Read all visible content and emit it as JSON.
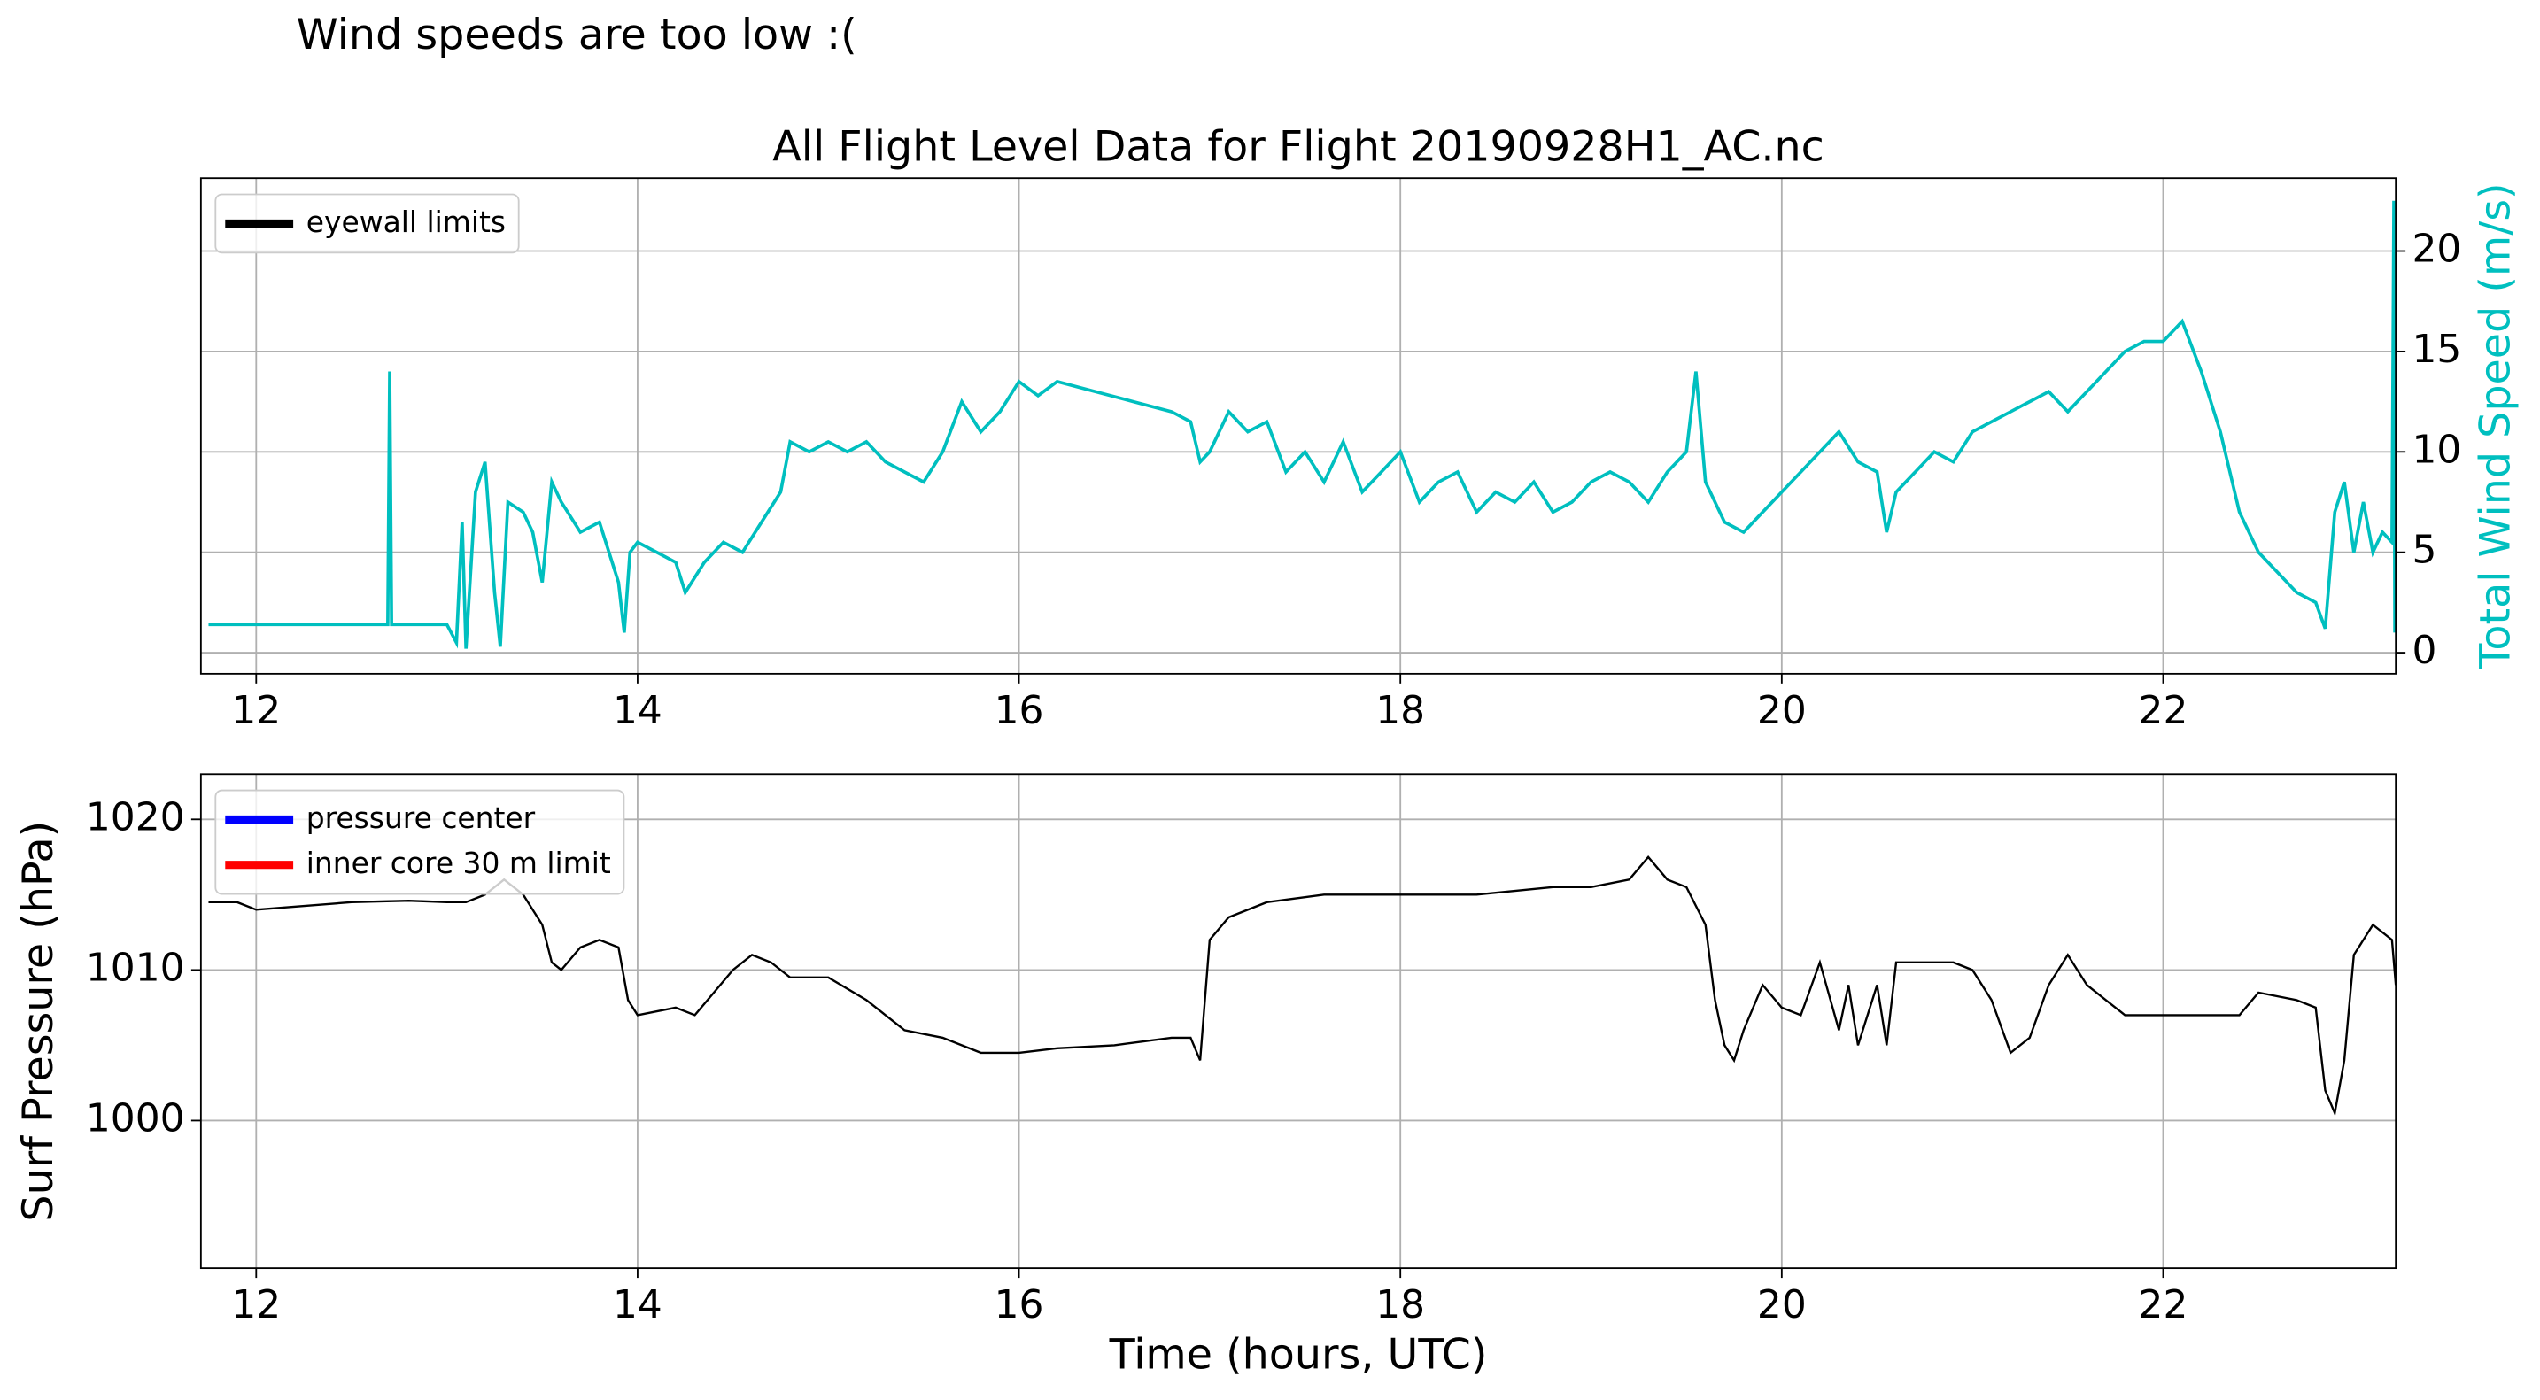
{
  "title": "Wind speeds are too low :(",
  "chart_data": [
    {
      "type": "line",
      "title": "All Flight Level Data for Flight 20190928H1_AC.nc",
      "y2_label": "Total Wind Speed (m/s)",
      "xlim": [
        11.71,
        23.22
      ],
      "xticks": [
        12,
        14,
        16,
        18,
        20,
        22
      ],
      "y2lim": [
        -1.05,
        23.63
      ],
      "y2ticks": [
        0,
        5,
        10,
        15,
        20
      ],
      "grid": true,
      "legend_location": "upper left",
      "legend_entries": [
        {
          "name": "eyewall limits",
          "color": "#000000"
        }
      ],
      "series": [
        {
          "name": "Total Wind Speed",
          "color": "#00bfbf",
          "axis": "y2",
          "x": [
            11.75,
            12.0,
            12.5,
            12.69,
            12.7,
            12.71,
            13.0,
            13.05,
            13.08,
            13.1,
            13.15,
            13.2,
            13.25,
            13.28,
            13.32,
            13.4,
            13.45,
            13.5,
            13.55,
            13.6,
            13.7,
            13.8,
            13.85,
            13.9,
            13.93,
            13.96,
            14.0,
            14.1,
            14.2,
            14.25,
            14.35,
            14.45,
            14.55,
            14.65,
            14.75,
            14.8,
            14.9,
            15.0,
            15.1,
            15.2,
            15.3,
            15.4,
            15.5,
            15.6,
            15.7,
            15.8,
            15.9,
            16.0,
            16.1,
            16.2,
            16.4,
            16.6,
            16.8,
            16.9,
            16.95,
            17.0,
            17.1,
            17.2,
            17.3,
            17.4,
            17.5,
            17.6,
            17.7,
            17.8,
            17.9,
            18.0,
            18.1,
            18.2,
            18.3,
            18.4,
            18.5,
            18.6,
            18.7,
            18.8,
            18.9,
            19.0,
            19.1,
            19.2,
            19.3,
            19.4,
            19.5,
            19.55,
            19.6,
            19.7,
            19.8,
            19.9,
            20.0,
            20.1,
            20.2,
            20.3,
            20.4,
            20.5,
            20.55,
            20.6,
            20.7,
            20.8,
            20.9,
            21.0,
            21.1,
            21.2,
            21.3,
            21.4,
            21.5,
            21.6,
            21.7,
            21.8,
            21.9,
            22.0,
            22.1,
            22.2,
            22.3,
            22.4,
            22.5,
            22.6,
            22.7,
            22.8,
            22.85,
            22.9,
            22.95,
            23.0,
            23.05,
            23.1,
            23.15,
            23.2,
            23.21,
            23.215
          ],
          "values": [
            1.4,
            1.4,
            1.4,
            1.4,
            14.0,
            1.4,
            1.4,
            0.5,
            6.5,
            0.2,
            8,
            9.5,
            3,
            0.3,
            7.5,
            7,
            6,
            3.5,
            8.5,
            7.5,
            6,
            6.5,
            5,
            3.5,
            1,
            5,
            5.5,
            5,
            4.5,
            3,
            4.5,
            5.5,
            5,
            6.5,
            8,
            10.5,
            10,
            10.5,
            10,
            10.5,
            9.5,
            9,
            8.5,
            10,
            12.5,
            11,
            12,
            13.5,
            12.8,
            13.5,
            13,
            12.5,
            12,
            11.5,
            9.5,
            10,
            12,
            11,
            11.5,
            9,
            10,
            8.5,
            10.5,
            8,
            9,
            10,
            7.5,
            8.5,
            9,
            7,
            8,
            7.5,
            8.5,
            7,
            7.5,
            8.5,
            9,
            8.5,
            7.5,
            9,
            10,
            14,
            8.5,
            6.5,
            6,
            7,
            8,
            9,
            10,
            11,
            9.5,
            9,
            6,
            8,
            9,
            10,
            9.5,
            11,
            11.5,
            12,
            12.5,
            13,
            12,
            13,
            14,
            15,
            15.5,
            15.5,
            16.5,
            14,
            11,
            7,
            5,
            4,
            3,
            2.5,
            1.2,
            7,
            8.5,
            5,
            7.5,
            5,
            6,
            5.5,
            22.5,
            1
          ]
        }
      ]
    },
    {
      "type": "line",
      "ylabel": "Surf Pressure (hPa)",
      "xlabel": "Time (hours, UTC)",
      "xlim": [
        11.71,
        23.22
      ],
      "xticks": [
        12,
        14,
        16,
        18,
        20,
        22
      ],
      "ylim": [
        990.2,
        1023.0
      ],
      "yticks": [
        1000,
        1010,
        1020
      ],
      "grid": true,
      "legend_location": "upper left",
      "legend_entries": [
        {
          "name": "pressure center",
          "color": "#0000ff"
        },
        {
          "name": "inner core 30 m limit",
          "color": "#ff0000"
        }
      ],
      "series": [
        {
          "name": "Surf Pressure",
          "color": "#000000",
          "x": [
            11.75,
            11.9,
            12.0,
            12.2,
            12.5,
            12.8,
            13.0,
            13.1,
            13.2,
            13.3,
            13.4,
            13.5,
            13.55,
            13.6,
            13.7,
            13.8,
            13.9,
            13.95,
            14.0,
            14.2,
            14.3,
            14.4,
            14.5,
            14.6,
            14.7,
            14.8,
            15.0,
            15.2,
            15.3,
            15.4,
            15.6,
            15.8,
            16.0,
            16.2,
            16.5,
            16.8,
            16.9,
            16.95,
            17.0,
            17.1,
            17.3,
            17.6,
            18.0,
            18.4,
            18.8,
            19.0,
            19.2,
            19.3,
            19.4,
            19.5,
            19.6,
            19.65,
            19.7,
            19.75,
            19.8,
            19.9,
            20.0,
            20.1,
            20.2,
            20.3,
            20.35,
            20.4,
            20.5,
            20.55,
            20.6,
            20.7,
            20.9,
            21.0,
            21.1,
            21.2,
            21.3,
            21.4,
            21.5,
            21.6,
            21.7,
            21.8,
            22.0,
            22.2,
            22.4,
            22.5,
            22.7,
            22.8,
            22.85,
            22.9,
            22.95,
            23.0,
            23.1,
            23.2,
            23.22
          ],
          "values": [
            1014.5,
            1014.5,
            1014,
            1014.2,
            1014.5,
            1014.6,
            1014.5,
            1014.5,
            1015,
            1016,
            1015,
            1013,
            1010.5,
            1010,
            1011.5,
            1012,
            1011.5,
            1008,
            1007,
            1007.5,
            1007,
            1008.5,
            1010,
            1011,
            1010.5,
            1009.5,
            1009.5,
            1008,
            1007,
            1006,
            1005.5,
            1004.5,
            1004.5,
            1004.8,
            1005,
            1005.5,
            1005.5,
            1004,
            1012,
            1013.5,
            1014.5,
            1015,
            1015,
            1015,
            1015.5,
            1015.5,
            1016,
            1017.5,
            1016,
            1015.5,
            1013,
            1008,
            1005,
            1004,
            1006,
            1009,
            1007.5,
            1007,
            1010.5,
            1006,
            1009,
            1005,
            1009,
            1005,
            1010.5,
            1010.5,
            1010.5,
            1010,
            1008,
            1004.5,
            1005.5,
            1009,
            1011,
            1009,
            1008,
            1007,
            1007,
            1007,
            1007,
            1008.5,
            1008,
            1007.5,
            1002,
            1000.5,
            1004,
            1011,
            1013,
            1012,
            1009
          ]
        }
      ]
    }
  ]
}
